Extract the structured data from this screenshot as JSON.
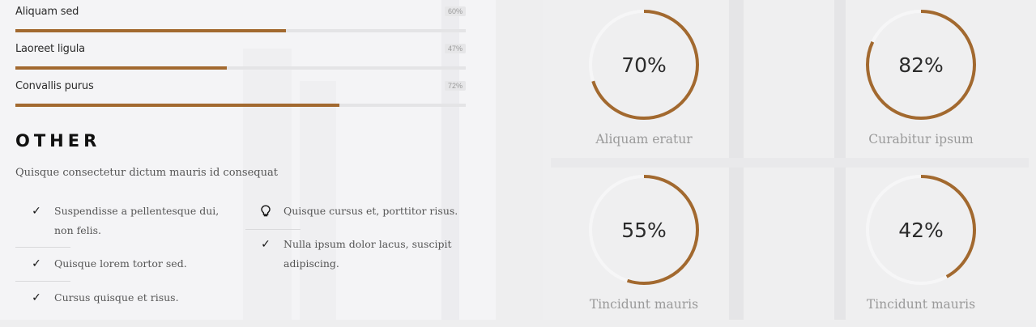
{
  "skills": [
    {
      "label": "Aliquam sed",
      "percent_text": "60%",
      "value": 60
    },
    {
      "label": "Laoreet ligula",
      "percent_text": "47%",
      "value": 47
    },
    {
      "label": "Convallis purus",
      "percent_text": "72%",
      "value": 72
    }
  ],
  "other": {
    "title": "OTHER",
    "subtitle": "Quisque consectetur dictum mauris id consequat",
    "features_left": [
      {
        "icon": "check-icon",
        "text_line1": "Suspendisse a pellentesque dui,",
        "text_line2": "non felis."
      },
      {
        "icon": "check-icon",
        "text_line1": "Quisque lorem tortor sed."
      },
      {
        "icon": "check-icon",
        "text_line1": "Cursus quisque et risus."
      }
    ],
    "features_right": [
      {
        "icon": "lightbulb-icon",
        "text_line1": "Quisque cursus et, porttitor risus."
      },
      {
        "icon": "check-icon",
        "text_line1": "Nulla ipsum dolor lacus, suscipit",
        "text_line2": "adipiscing."
      }
    ]
  },
  "circles": [
    {
      "percent_text": "70%",
      "value": 70,
      "label": "Aliquam eratur"
    },
    {
      "percent_text": "82%",
      "value": 82,
      "label": "Curabitur ipsum"
    },
    {
      "percent_text": "55%",
      "value": 55,
      "label": "Tincidunt mauris"
    },
    {
      "percent_text": "42%",
      "value": 42,
      "label": "Tincidunt mauris"
    }
  ],
  "colors": {
    "accent": "#a2692f",
    "track": "#e4e4e6"
  }
}
